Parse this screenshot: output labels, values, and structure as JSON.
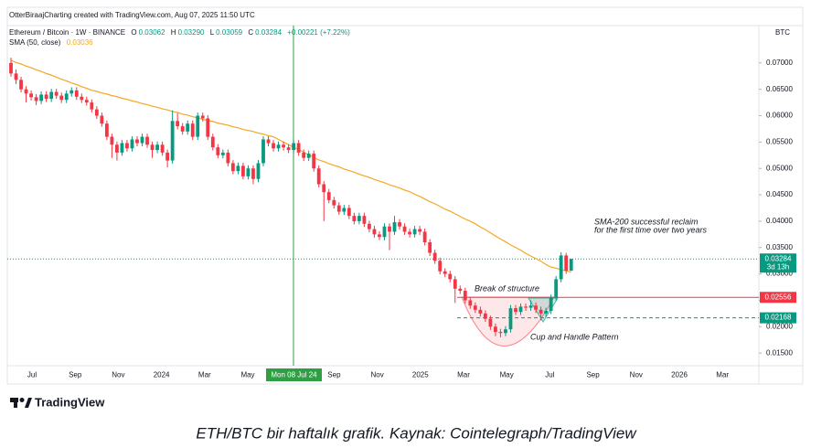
{
  "header": {
    "credit": "OtterBiraajCharting created with TradingView.com, Aug 07, 2025 11:50 UTC",
    "symbol": "Ethereum / Bitcoin · 1W · BINANCE",
    "ohlc": [
      {
        "key": "O",
        "value": "0.03062"
      },
      {
        "key": "H",
        "value": "0.03290"
      },
      {
        "key": "L",
        "value": "0.03059"
      },
      {
        "key": "C",
        "value": "0.03284"
      }
    ],
    "change": "+0.00221 (+7.22%)",
    "sma_name": "SMA (50, close)",
    "sma_value": "0.03036",
    "currency": "BTC"
  },
  "chart_data": {
    "type": "candlestick",
    "up_color": "#089981",
    "down_color": "#f23645",
    "open": [
      0.07,
      0.068,
      0.0668,
      0.065,
      0.0642,
      0.0635,
      0.0628,
      0.064,
      0.0632,
      0.0645,
      0.0638,
      0.063,
      0.0642,
      0.0648,
      0.0636,
      0.063,
      0.0625,
      0.0612,
      0.06,
      0.0585,
      0.056,
      0.0545,
      0.053,
      0.0548,
      0.0538,
      0.0555,
      0.0548,
      0.056,
      0.0545,
      0.0535,
      0.0545,
      0.053,
      0.0515,
      0.059,
      0.058,
      0.057,
      0.0585,
      0.056,
      0.06,
      0.0595,
      0.056,
      0.054,
      0.0525,
      0.053,
      0.051,
      0.0495,
      0.0505,
      0.0485,
      0.05,
      0.048,
      0.051,
      0.0555,
      0.0548,
      0.0538,
      0.0545,
      0.054,
      0.0535,
      0.0548,
      0.053,
      0.052,
      0.0528,
      0.05,
      0.047,
      0.0455,
      0.044,
      0.043,
      0.0418,
      0.0425,
      0.041,
      0.04,
      0.041,
      0.0395,
      0.0385,
      0.0375,
      0.037,
      0.039,
      0.038,
      0.0398,
      0.039,
      0.038,
      0.0375,
      0.0385,
      0.038,
      0.036,
      0.034,
      0.0325,
      0.0305,
      0.03,
      0.029,
      0.0272,
      0.0268,
      0.025,
      0.024,
      0.0232,
      0.0225,
      0.0215,
      0.02,
      0.019,
      0.0188,
      0.0195,
      0.0235,
      0.0228,
      0.0238,
      0.0236,
      0.024,
      0.0232,
      0.0225,
      0.023,
      0.0255,
      0.029,
      0.0335,
      0.03062
    ],
    "high": [
      0.071,
      0.0688,
      0.0674,
      0.0656,
      0.0648,
      0.0641,
      0.0646,
      0.0646,
      0.0651,
      0.0651,
      0.0644,
      0.0648,
      0.0654,
      0.0654,
      0.0642,
      0.0636,
      0.0631,
      0.0618,
      0.0606,
      0.0591,
      0.0566,
      0.0551,
      0.0554,
      0.0554,
      0.0561,
      0.0561,
      0.0566,
      0.0566,
      0.0551,
      0.0551,
      0.0551,
      0.0536,
      0.061,
      0.0605,
      0.0586,
      0.0591,
      0.0591,
      0.0606,
      0.0606,
      0.0601,
      0.0566,
      0.0546,
      0.0536,
      0.0536,
      0.0516,
      0.0511,
      0.0511,
      0.0506,
      0.0506,
      0.0516,
      0.0561,
      0.0561,
      0.0554,
      0.0551,
      0.0551,
      0.0546,
      0.0554,
      0.0554,
      0.0536,
      0.0534,
      0.0534,
      0.0506,
      0.0476,
      0.0461,
      0.0446,
      0.0436,
      0.0431,
      0.0431,
      0.0416,
      0.0416,
      0.0416,
      0.0401,
      0.0391,
      0.0381,
      0.0396,
      0.0396,
      0.041,
      0.0404,
      0.0396,
      0.0386,
      0.0391,
      0.0391,
      0.0386,
      0.0366,
      0.0346,
      0.0331,
      0.0311,
      0.0306,
      0.0296,
      0.0278,
      0.0274,
      0.0256,
      0.0246,
      0.0238,
      0.0231,
      0.0221,
      0.0206,
      0.0196,
      0.0201,
      0.0241,
      0.0241,
      0.0244,
      0.0244,
      0.025,
      0.0246,
      0.0238,
      0.0236,
      0.0261,
      0.0296,
      0.0341,
      0.034,
      0.0329
    ],
    "low": [
      0.0674,
      0.066,
      0.0644,
      0.0625,
      0.0629,
      0.062,
      0.0622,
      0.0626,
      0.0626,
      0.0632,
      0.0624,
      0.0624,
      0.0636,
      0.063,
      0.0624,
      0.0619,
      0.0606,
      0.0594,
      0.0579,
      0.0554,
      0.052,
      0.0515,
      0.0524,
      0.0532,
      0.0532,
      0.0542,
      0.0542,
      0.0539,
      0.052,
      0.0529,
      0.0524,
      0.0502,
      0.0509,
      0.0574,
      0.0564,
      0.0564,
      0.0554,
      0.0554,
      0.0589,
      0.0554,
      0.0534,
      0.0519,
      0.0519,
      0.0504,
      0.0489,
      0.0489,
      0.0479,
      0.0479,
      0.047,
      0.0474,
      0.0504,
      0.0542,
      0.0532,
      0.0532,
      0.0534,
      0.0529,
      0.0529,
      0.0524,
      0.0514,
      0.0514,
      0.0494,
      0.0464,
      0.04,
      0.0434,
      0.0424,
      0.0412,
      0.0412,
      0.0404,
      0.0394,
      0.0394,
      0.0389,
      0.0379,
      0.0369,
      0.0364,
      0.0364,
      0.0345,
      0.0374,
      0.0384,
      0.0374,
      0.0369,
      0.0369,
      0.0374,
      0.0354,
      0.0334,
      0.0319,
      0.0299,
      0.0294,
      0.0284,
      0.0245,
      0.0262,
      0.0244,
      0.0234,
      0.0226,
      0.0219,
      0.0209,
      0.0194,
      0.0182,
      0.018,
      0.0182,
      0.0189,
      0.0222,
      0.0222,
      0.023,
      0.023,
      0.0226,
      0.0212,
      0.0219,
      0.0224,
      0.0249,
      0.0284,
      0.03,
      0.03059
    ],
    "close": [
      0.068,
      0.0668,
      0.065,
      0.0642,
      0.0635,
      0.0628,
      0.064,
      0.0632,
      0.0645,
      0.0638,
      0.063,
      0.0642,
      0.0648,
      0.0636,
      0.063,
      0.0625,
      0.0612,
      0.06,
      0.0585,
      0.056,
      0.0545,
      0.053,
      0.0548,
      0.0538,
      0.0555,
      0.0548,
      0.056,
      0.0545,
      0.0535,
      0.0545,
      0.053,
      0.0515,
      0.059,
      0.058,
      0.057,
      0.0585,
      0.056,
      0.06,
      0.0595,
      0.056,
      0.054,
      0.0525,
      0.053,
      0.051,
      0.0495,
      0.0505,
      0.0485,
      0.05,
      0.048,
      0.051,
      0.0555,
      0.0548,
      0.0538,
      0.0545,
      0.054,
      0.0535,
      0.0548,
      0.053,
      0.052,
      0.0528,
      0.05,
      0.047,
      0.0455,
      0.044,
      0.043,
      0.0418,
      0.0425,
      0.041,
      0.04,
      0.041,
      0.0395,
      0.0385,
      0.0375,
      0.037,
      0.039,
      0.038,
      0.0398,
      0.039,
      0.038,
      0.0375,
      0.0385,
      0.038,
      0.036,
      0.034,
      0.0325,
      0.0305,
      0.03,
      0.029,
      0.0272,
      0.0268,
      0.025,
      0.024,
      0.0232,
      0.0225,
      0.0215,
      0.02,
      0.019,
      0.0188,
      0.0195,
      0.0235,
      0.0228,
      0.0238,
      0.0236,
      0.024,
      0.0232,
      0.0225,
      0.023,
      0.0255,
      0.029,
      0.0335,
      0.0306,
      0.03284
    ],
    "sma": {
      "color": "#f5a623",
      "values": [
        0.0705,
        0.0701,
        0.0698,
        0.0694,
        0.0691,
        0.0687,
        0.0684,
        0.068,
        0.0677,
        0.0673,
        0.0669,
        0.0666,
        0.0662,
        0.0659,
        0.0655,
        0.0652,
        0.0648,
        0.0646,
        0.0643,
        0.0641,
        0.0638,
        0.0636,
        0.0633,
        0.0631,
        0.0628,
        0.0626,
        0.0623,
        0.0621,
        0.0618,
        0.0616,
        0.0613,
        0.0611,
        0.0608,
        0.0606,
        0.0603,
        0.0601,
        0.0598,
        0.0596,
        0.0593,
        0.0591,
        0.0589,
        0.0586,
        0.0584,
        0.0582,
        0.0579,
        0.0577,
        0.0574,
        0.0572,
        0.057,
        0.0567,
        0.0565,
        0.0562,
        0.056,
        0.0555,
        0.055,
        0.0545,
        0.054,
        0.0536,
        0.0531,
        0.0526,
        0.0521,
        0.0516,
        0.0513,
        0.0509,
        0.0506,
        0.0503,
        0.0499,
        0.0496,
        0.0493,
        0.0489,
        0.0486,
        0.0483,
        0.0479,
        0.0476,
        0.0473,
        0.0469,
        0.0466,
        0.0463,
        0.0459,
        0.0456,
        0.0451,
        0.0447,
        0.0442,
        0.0437,
        0.0433,
        0.0428,
        0.0423,
        0.0419,
        0.0414,
        0.0409,
        0.0404,
        0.04,
        0.0395,
        0.0389,
        0.0384,
        0.0378,
        0.0372,
        0.0366,
        0.0361,
        0.0355,
        0.035,
        0.0345,
        0.0339,
        0.0334,
        0.0329,
        0.0324,
        0.0318,
        0.0313,
        0.0311,
        0.0308,
        0.0306,
        0.03036
      ]
    },
    "ylim": [
      0.0126,
      0.075
    ],
    "yticks": [
      {
        "value": 0.015,
        "label": "0.01500"
      },
      {
        "value": 0.02,
        "label": "0.02000"
      },
      {
        "value": 0.025,
        "label": "0.02500"
      },
      {
        "value": 0.03,
        "label": "0.03000"
      },
      {
        "value": 0.035,
        "label": "0.03500"
      },
      {
        "value": 0.04,
        "label": "0.04000"
      },
      {
        "value": 0.045,
        "label": "0.04500"
      },
      {
        "value": 0.05,
        "label": "0.05000"
      },
      {
        "value": 0.055,
        "label": "0.05500"
      },
      {
        "value": 0.06,
        "label": "0.06000"
      },
      {
        "value": 0.065,
        "label": "0.06500"
      },
      {
        "value": 0.07,
        "label": "0.07000"
      }
    ],
    "grid": false,
    "x_labels": [
      "Jul",
      "Sep",
      "Nov",
      "2024",
      "Mar",
      "May",
      null,
      "Sep",
      "Nov",
      "2025",
      "Mar",
      "May",
      "Jul",
      "Sep",
      "Nov",
      "2026",
      "Mar"
    ],
    "crosshair_label": "Mon 08 Jul 24",
    "last_price": 0.03284,
    "countdown": "3d 13h",
    "levels": [
      {
        "value": 0.02556,
        "color": "#f23645",
        "style": "solid"
      },
      {
        "value": 0.02168,
        "color": "#089981",
        "style": "dashed"
      }
    ],
    "annotations": {
      "sma_reclaim": [
        "SMA-200 successful reclaim",
        "for the first time over two years"
      ],
      "break": "Break of structure",
      "cup": "Cup and Handle Pattern"
    }
  },
  "footer": {
    "logo": "TradingView",
    "caption": "ETH/BTC bir haftalık grafik. Kaynak: Cointelegraph/TradingView"
  }
}
